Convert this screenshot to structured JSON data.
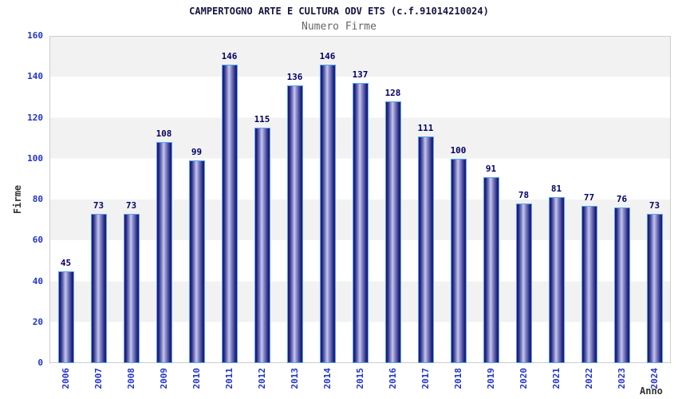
{
  "chart_data": {
    "type": "bar",
    "title": "CAMPERTOGNO ARTE E CULTURA ODV ETS (c.f.91014210024)",
    "subtitle": "Numero Firme",
    "xlabel": "Anno",
    "ylabel": "Firme",
    "categories": [
      "2006",
      "2007",
      "2008",
      "2009",
      "2010",
      "2011",
      "2012",
      "2013",
      "2014",
      "2015",
      "2016",
      "2017",
      "2018",
      "2019",
      "2020",
      "2021",
      "2022",
      "2023",
      "2024"
    ],
    "values": [
      45,
      73,
      73,
      108,
      99,
      146,
      115,
      136,
      146,
      137,
      128,
      111,
      100,
      91,
      78,
      81,
      77,
      76,
      73
    ],
    "ylim": [
      0,
      160
    ],
    "yticks": [
      0,
      20,
      40,
      60,
      80,
      100,
      120,
      140,
      160
    ],
    "grid": "horizontal-bands",
    "legend_position": "none",
    "colors": {
      "bar_border": "#55a5f5",
      "bar_edge_dark": "#1b1b77",
      "bar_center_light": "#c6c9ec",
      "tick_label": "#2233cc",
      "value_label": "#000066",
      "title": "#15153f",
      "subtitle": "#666666",
      "axis_title": "#333333",
      "band_gray": "#f2f2f2",
      "band_white": "#ffffff",
      "plot_border": "#cccccc"
    }
  }
}
